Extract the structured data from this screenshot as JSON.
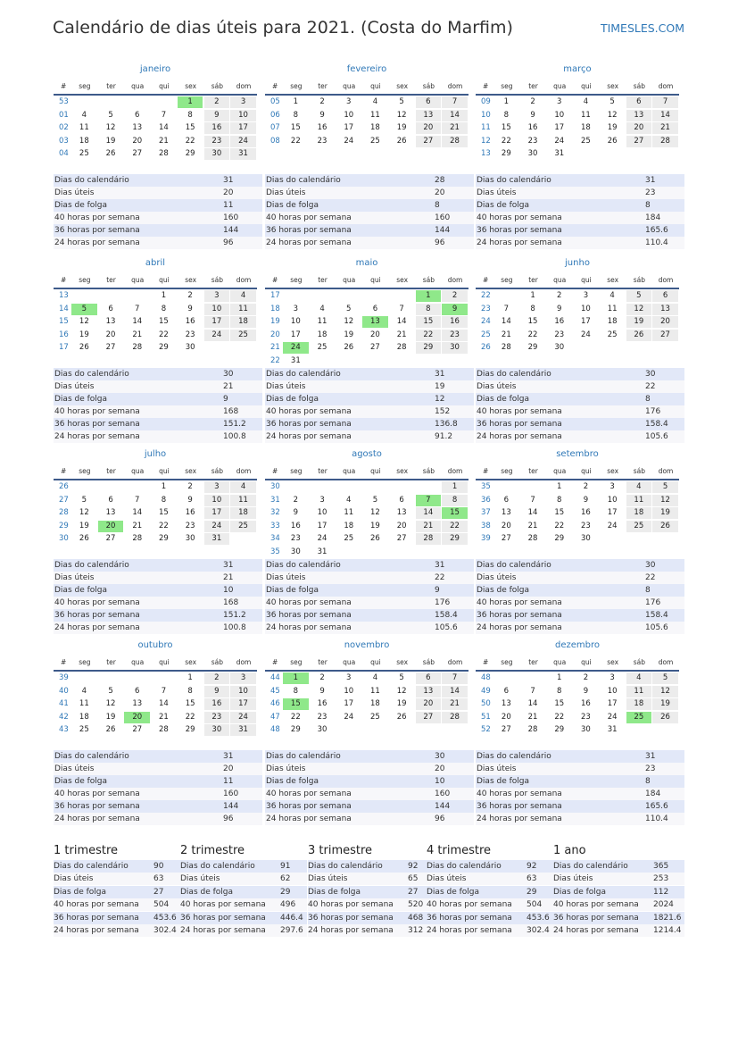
{
  "header": {
    "title": "Calendário de dias úteis para 2021. (Costa do Marfim)",
    "site": "TIMESLES.COM"
  },
  "weekdays": [
    "#",
    "seg",
    "ter",
    "qua",
    "qui",
    "sex",
    "sáb",
    "dom"
  ],
  "stat_labels": [
    "Dias do calendário",
    "Dias úteis",
    "Dias de folga",
    "40 horas por semana",
    "36 horas por semana",
    "24 horas por semana"
  ],
  "months": [
    {
      "name": "janeiro",
      "holidays": [
        1
      ],
      "stats": [
        31,
        20,
        11,
        160,
        144,
        96
      ],
      "weeks": [
        {
          "week": "53",
          "days": [
            null,
            null,
            null,
            null,
            1,
            2,
            3
          ]
        },
        {
          "week": "01",
          "days": [
            4,
            5,
            6,
            7,
            8,
            9,
            10
          ]
        },
        {
          "week": "02",
          "days": [
            11,
            12,
            13,
            14,
            15,
            16,
            17
          ]
        },
        {
          "week": "03",
          "days": [
            18,
            19,
            20,
            21,
            22,
            23,
            24
          ]
        },
        {
          "week": "04",
          "days": [
            25,
            26,
            27,
            28,
            29,
            30,
            31
          ]
        }
      ]
    },
    {
      "name": "fevereiro",
      "holidays": [],
      "stats": [
        28,
        20,
        8,
        160,
        144,
        96
      ],
      "weeks": [
        {
          "week": "05",
          "days": [
            1,
            2,
            3,
            4,
            5,
            6,
            7
          ]
        },
        {
          "week": "06",
          "days": [
            8,
            9,
            10,
            11,
            12,
            13,
            14
          ]
        },
        {
          "week": "07",
          "days": [
            15,
            16,
            17,
            18,
            19,
            20,
            21
          ]
        },
        {
          "week": "08",
          "days": [
            22,
            23,
            24,
            25,
            26,
            27,
            28
          ]
        }
      ]
    },
    {
      "name": "março",
      "holidays": [],
      "stats": [
        31,
        23,
        8,
        184,
        165.6,
        110.4
      ],
      "weeks": [
        {
          "week": "09",
          "days": [
            1,
            2,
            3,
            4,
            5,
            6,
            7
          ]
        },
        {
          "week": "10",
          "days": [
            8,
            9,
            10,
            11,
            12,
            13,
            14
          ]
        },
        {
          "week": "11",
          "days": [
            15,
            16,
            17,
            18,
            19,
            20,
            21
          ]
        },
        {
          "week": "12",
          "days": [
            22,
            23,
            24,
            25,
            26,
            27,
            28
          ]
        },
        {
          "week": "13",
          "days": [
            29,
            30,
            31,
            null,
            null,
            null,
            null
          ]
        }
      ]
    },
    {
      "name": "abril",
      "holidays": [
        5
      ],
      "stats": [
        30,
        21,
        9,
        168,
        151.2,
        100.8
      ],
      "weeks": [
        {
          "week": "13",
          "days": [
            null,
            null,
            null,
            1,
            2,
            3,
            4
          ]
        },
        {
          "week": "14",
          "days": [
            5,
            6,
            7,
            8,
            9,
            10,
            11
          ]
        },
        {
          "week": "15",
          "days": [
            12,
            13,
            14,
            15,
            16,
            17,
            18
          ]
        },
        {
          "week": "16",
          "days": [
            19,
            20,
            21,
            22,
            23,
            24,
            25
          ]
        },
        {
          "week": "17",
          "days": [
            26,
            27,
            28,
            29,
            30,
            null,
            null
          ]
        }
      ]
    },
    {
      "name": "maio",
      "holidays": [
        1,
        9,
        13,
        24
      ],
      "stats": [
        31,
        19,
        12,
        152,
        136.8,
        91.2
      ],
      "weeks": [
        {
          "week": "17",
          "days": [
            null,
            null,
            null,
            null,
            null,
            1,
            2
          ]
        },
        {
          "week": "18",
          "days": [
            3,
            4,
            5,
            6,
            7,
            8,
            9
          ]
        },
        {
          "week": "19",
          "days": [
            10,
            11,
            12,
            13,
            14,
            15,
            16
          ]
        },
        {
          "week": "20",
          "days": [
            17,
            18,
            19,
            20,
            21,
            22,
            23
          ]
        },
        {
          "week": "21",
          "days": [
            24,
            25,
            26,
            27,
            28,
            29,
            30
          ]
        },
        {
          "week": "22",
          "days": [
            31,
            null,
            null,
            null,
            null,
            null,
            null
          ]
        }
      ]
    },
    {
      "name": "junho",
      "holidays": [],
      "stats": [
        30,
        22,
        8,
        176,
        158.4,
        105.6
      ],
      "weeks": [
        {
          "week": "22",
          "days": [
            null,
            1,
            2,
            3,
            4,
            5,
            6
          ]
        },
        {
          "week": "23",
          "days": [
            7,
            8,
            9,
            10,
            11,
            12,
            13
          ]
        },
        {
          "week": "24",
          "days": [
            14,
            15,
            16,
            17,
            18,
            19,
            20
          ]
        },
        {
          "week": "25",
          "days": [
            21,
            22,
            23,
            24,
            25,
            26,
            27
          ]
        },
        {
          "week": "26",
          "days": [
            28,
            29,
            30,
            null,
            null,
            null,
            null
          ]
        }
      ]
    },
    {
      "name": "julho",
      "holidays": [
        20
      ],
      "stats": [
        31,
        21,
        10,
        168,
        151.2,
        100.8
      ],
      "weeks": [
        {
          "week": "26",
          "days": [
            null,
            null,
            null,
            1,
            2,
            3,
            4
          ]
        },
        {
          "week": "27",
          "days": [
            5,
            6,
            7,
            8,
            9,
            10,
            11
          ]
        },
        {
          "week": "28",
          "days": [
            12,
            13,
            14,
            15,
            16,
            17,
            18
          ]
        },
        {
          "week": "29",
          "days": [
            19,
            20,
            21,
            22,
            23,
            24,
            25
          ]
        },
        {
          "week": "30",
          "days": [
            26,
            27,
            28,
            29,
            30,
            31,
            null
          ]
        }
      ]
    },
    {
      "name": "agosto",
      "holidays": [
        7,
        15
      ],
      "stats": [
        31,
        22,
        9,
        176,
        158.4,
        105.6
      ],
      "weeks": [
        {
          "week": "30",
          "days": [
            null,
            null,
            null,
            null,
            null,
            null,
            1
          ]
        },
        {
          "week": "31",
          "days": [
            2,
            3,
            4,
            5,
            6,
            7,
            8
          ]
        },
        {
          "week": "32",
          "days": [
            9,
            10,
            11,
            12,
            13,
            14,
            15
          ]
        },
        {
          "week": "33",
          "days": [
            16,
            17,
            18,
            19,
            20,
            21,
            22
          ]
        },
        {
          "week": "34",
          "days": [
            23,
            24,
            25,
            26,
            27,
            28,
            29
          ]
        },
        {
          "week": "35",
          "days": [
            30,
            31,
            null,
            null,
            null,
            null,
            null
          ]
        }
      ]
    },
    {
      "name": "setembro",
      "holidays": [],
      "stats": [
        30,
        22,
        8,
        176,
        158.4,
        105.6
      ],
      "weeks": [
        {
          "week": "35",
          "days": [
            null,
            null,
            1,
            2,
            3,
            4,
            5
          ]
        },
        {
          "week": "36",
          "days": [
            6,
            7,
            8,
            9,
            10,
            11,
            12
          ]
        },
        {
          "week": "37",
          "days": [
            13,
            14,
            15,
            16,
            17,
            18,
            19
          ]
        },
        {
          "week": "38",
          "days": [
            20,
            21,
            22,
            23,
            24,
            25,
            26
          ]
        },
        {
          "week": "39",
          "days": [
            27,
            28,
            29,
            30,
            null,
            null,
            null
          ]
        }
      ]
    },
    {
      "name": "outubro",
      "holidays": [
        20
      ],
      "stats": [
        31,
        20,
        11,
        160,
        144,
        96
      ],
      "weeks": [
        {
          "week": "39",
          "days": [
            null,
            null,
            null,
            null,
            1,
            2,
            3
          ]
        },
        {
          "week": "40",
          "days": [
            4,
            5,
            6,
            7,
            8,
            9,
            10
          ]
        },
        {
          "week": "41",
          "days": [
            11,
            12,
            13,
            14,
            15,
            16,
            17
          ]
        },
        {
          "week": "42",
          "days": [
            18,
            19,
            20,
            21,
            22,
            23,
            24
          ]
        },
        {
          "week": "43",
          "days": [
            25,
            26,
            27,
            28,
            29,
            30,
            31
          ]
        }
      ]
    },
    {
      "name": "novembro",
      "holidays": [
        1,
        15
      ],
      "stats": [
        30,
        20,
        10,
        160,
        144,
        96
      ],
      "weeks": [
        {
          "week": "44",
          "days": [
            1,
            2,
            3,
            4,
            5,
            6,
            7
          ]
        },
        {
          "week": "45",
          "days": [
            8,
            9,
            10,
            11,
            12,
            13,
            14
          ]
        },
        {
          "week": "46",
          "days": [
            15,
            16,
            17,
            18,
            19,
            20,
            21
          ]
        },
        {
          "week": "47",
          "days": [
            22,
            23,
            24,
            25,
            26,
            27,
            28
          ]
        },
        {
          "week": "48",
          "days": [
            29,
            30,
            null,
            null,
            null,
            null,
            null
          ]
        }
      ]
    },
    {
      "name": "dezembro",
      "holidays": [
        25
      ],
      "stats": [
        31,
        23,
        8,
        184,
        165.6,
        110.4
      ],
      "weeks": [
        {
          "week": "48",
          "days": [
            null,
            null,
            1,
            2,
            3,
            4,
            5
          ]
        },
        {
          "week": "49",
          "days": [
            6,
            7,
            8,
            9,
            10,
            11,
            12
          ]
        },
        {
          "week": "50",
          "days": [
            13,
            14,
            15,
            16,
            17,
            18,
            19
          ]
        },
        {
          "week": "51",
          "days": [
            20,
            21,
            22,
            23,
            24,
            25,
            26
          ]
        },
        {
          "week": "52",
          "days": [
            27,
            28,
            29,
            30,
            31,
            null,
            null
          ]
        }
      ]
    }
  ],
  "summary": [
    {
      "name": "1 trimestre",
      "stats": [
        90,
        63,
        27,
        504,
        453.6,
        302.4
      ]
    },
    {
      "name": "2 trimestre",
      "stats": [
        91,
        62,
        29,
        496,
        446.4,
        297.6
      ]
    },
    {
      "name": "3 trimestre",
      "stats": [
        92,
        65,
        27,
        520,
        468,
        312
      ]
    },
    {
      "name": "4 trimestre",
      "stats": [
        92,
        63,
        29,
        504,
        453.6,
        302.4
      ]
    },
    {
      "name": "1 ano",
      "stats": [
        365,
        253,
        112,
        2024,
        1821.6,
        1214.4
      ]
    }
  ]
}
